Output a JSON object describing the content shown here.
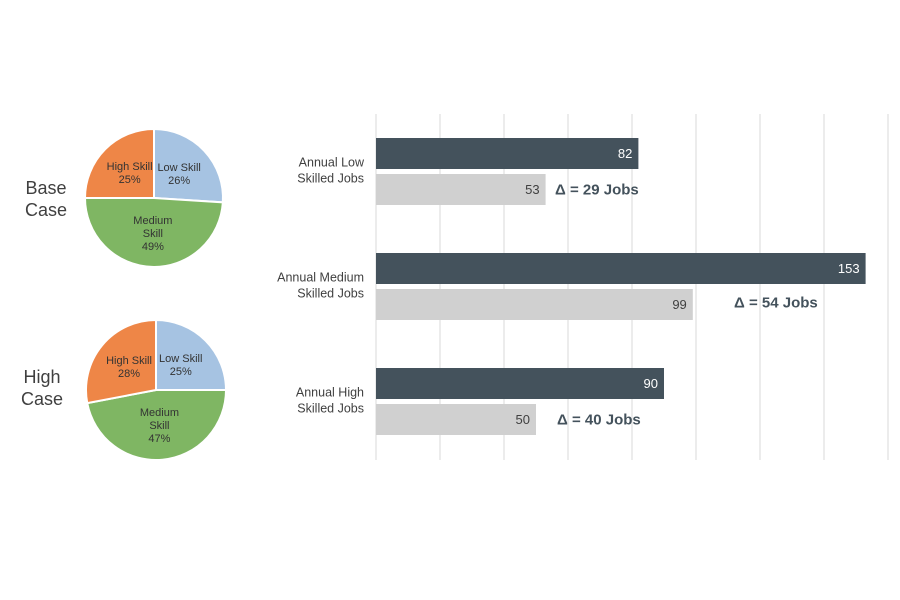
{
  "chart_data": [
    {
      "type": "pie",
      "title": "Base Case",
      "title_lines": [
        "Base",
        "Case"
      ],
      "slices": [
        {
          "name_lines": [
            "Low Skill"
          ],
          "label": "26%",
          "value": 26,
          "color": "#a6c3e2"
        },
        {
          "name_lines": [
            "Medium",
            "Skill"
          ],
          "label": "49%",
          "value": 49,
          "color": "#7fb663"
        },
        {
          "name_lines": [
            "High Skill"
          ],
          "label": "25%",
          "value": 25,
          "color": "#ee8647"
        }
      ]
    },
    {
      "type": "pie",
      "title": "High Case",
      "title_lines": [
        "High",
        "Case"
      ],
      "slices": [
        {
          "name_lines": [
            "Low Skill"
          ],
          "label": "25%",
          "value": 25,
          "color": "#a6c3e2"
        },
        {
          "name_lines": [
            "Medium",
            "Skill"
          ],
          "label": "47%",
          "value": 47,
          "color": "#7fb663"
        },
        {
          "name_lines": [
            "High Skill"
          ],
          "label": "28%",
          "value": 28,
          "color": "#ee8647"
        }
      ]
    },
    {
      "type": "bar",
      "orientation": "horizontal",
      "categories": [
        {
          "lines": [
            "Annual Low",
            "Skilled Jobs"
          ]
        },
        {
          "lines": [
            "Annual Medium",
            "Skilled Jobs"
          ]
        },
        {
          "lines": [
            "Annual High",
            "Skilled Jobs"
          ]
        }
      ],
      "series": [
        {
          "values": [
            82,
            153,
            90
          ],
          "color": "#44525c",
          "label_color": "#ffffff"
        },
        {
          "values": [
            53,
            99,
            50
          ],
          "color": "#d0d0d0",
          "label_color": "#404040"
        }
      ],
      "annotations": [
        "Δ = 29 Jobs",
        "Δ = 54 Jobs",
        "Δ = 40 Jobs"
      ],
      "xlim": [
        0,
        160
      ],
      "grid": true,
      "x_ticks_shown": false
    }
  ]
}
